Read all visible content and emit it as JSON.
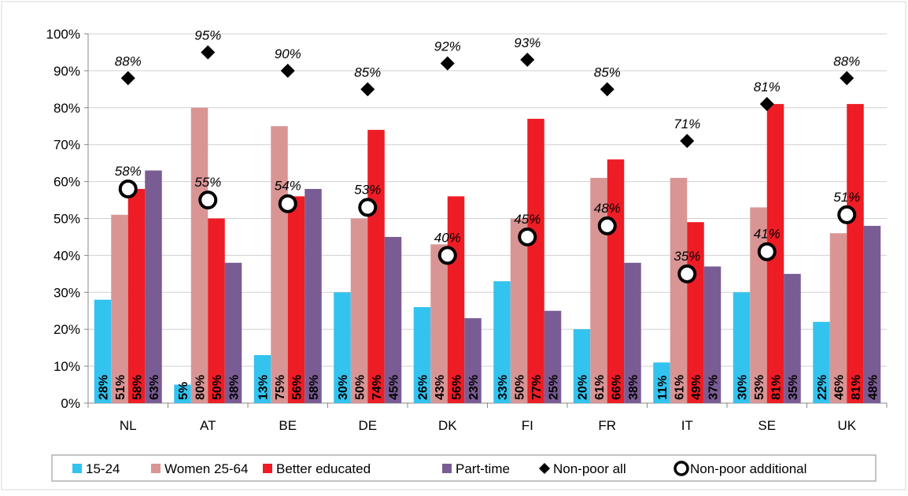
{
  "chart_data": {
    "type": "bar",
    "categories": [
      "NL",
      "AT",
      "BE",
      "DE",
      "DK",
      "FI",
      "FR",
      "IT",
      "SE",
      "UK"
    ],
    "series": [
      {
        "name": "15-24",
        "color": "#33c3ef",
        "values": [
          28,
          5,
          13,
          30,
          26,
          33,
          20,
          11,
          30,
          22
        ],
        "value_labels": [
          "28%",
          "5%",
          "13%",
          "30%",
          "26%",
          "33%",
          "20%",
          "11%",
          "30%",
          "22%"
        ]
      },
      {
        "name": "Women 25-64",
        "color": "#d99594",
        "values": [
          51,
          80,
          75,
          50,
          43,
          50,
          61,
          61,
          53,
          46
        ],
        "value_labels": [
          "51%",
          "80%",
          "75%",
          "50%",
          "43%",
          "50%",
          "61%",
          "61%",
          "53%",
          "46%"
        ]
      },
      {
        "name": "Better educated",
        "color": "#ee1c24",
        "values": [
          58,
          50,
          56,
          74,
          56,
          77,
          66,
          49,
          81,
          81
        ],
        "value_labels": [
          "58%",
          "50%",
          "56%",
          "74%",
          "56%",
          "77%",
          "66%",
          "49%",
          "81%",
          "81%"
        ]
      },
      {
        "name": "Part-time",
        "color": "#7a5c94",
        "values": [
          63,
          38,
          58,
          45,
          23,
          25,
          38,
          37,
          35,
          48
        ],
        "value_labels": [
          "63%",
          "38%",
          "58%",
          "45%",
          "23%",
          "25%",
          "38%",
          "37%",
          "35%",
          "48%"
        ]
      },
      {
        "name": "Non-poor all",
        "type": "diamond",
        "color": "#000000",
        "values": [
          88,
          95,
          90,
          85,
          92,
          93,
          85,
          71,
          81,
          88
        ],
        "value_labels": [
          "88%",
          "95%",
          "90%",
          "85%",
          "92%",
          "93%",
          "85%",
          "71%",
          "81%",
          "88%"
        ]
      },
      {
        "name": "Non-poor additional",
        "type": "circle",
        "color": "#000000",
        "values": [
          58,
          55,
          54,
          53,
          40,
          45,
          48,
          35,
          41,
          51
        ],
        "value_labels": [
          "58%",
          "55%",
          "54%",
          "53%",
          "40%",
          "45%",
          "48%",
          "35%",
          "41%",
          "51%"
        ]
      }
    ],
    "ylim": [
      0,
      100
    ],
    "yticks": [
      {
        "value": 0,
        "label": "0%"
      },
      {
        "value": 10,
        "label": "10%"
      },
      {
        "value": 20,
        "label": "20%"
      },
      {
        "value": 30,
        "label": "30%"
      },
      {
        "value": 40,
        "label": "40%"
      },
      {
        "value": 50,
        "label": "50%"
      },
      {
        "value": 60,
        "label": "60%"
      },
      {
        "value": 70,
        "label": "70%"
      },
      {
        "value": 80,
        "label": "80%"
      },
      {
        "value": 90,
        "label": "90%"
      },
      {
        "value": 100,
        "label": "100%"
      }
    ],
    "grid": true,
    "legend": "bottom"
  }
}
